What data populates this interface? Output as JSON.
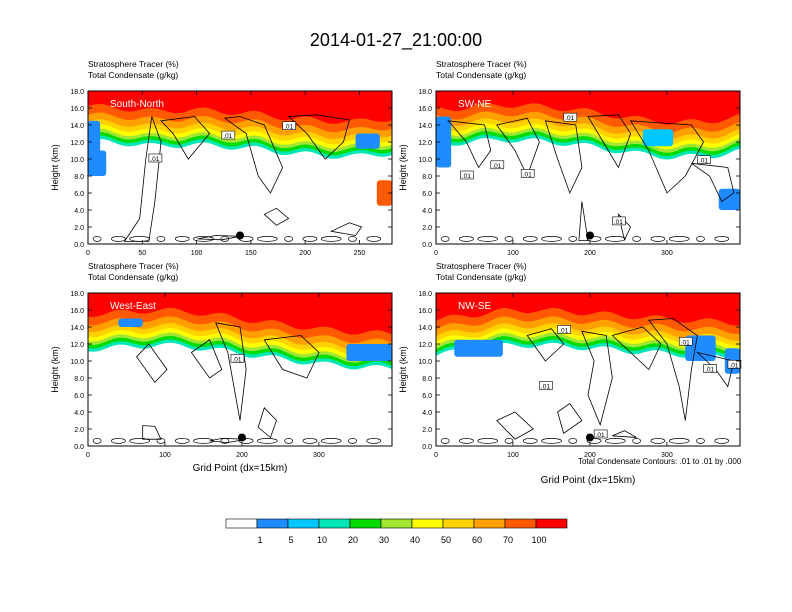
{
  "title": "2014-01-27_21:00:00",
  "colors": {
    "scale": [
      "#ffffff",
      "#1e8cff",
      "#00c8ff",
      "#00e6b4",
      "#00dc00",
      "#a0e632",
      "#ffff00",
      "#ffd200",
      "#ffa000",
      "#ff5a00",
      "#ff0000"
    ],
    "contour": "#000000"
  },
  "panels": [
    {
      "id": "south-north",
      "label": "South-North",
      "tracer_label": "Stratosphere Tracer   (%)",
      "condensate_label": "Total Condensate   (g/kg)",
      "xmax": 280,
      "xticks": [
        0,
        50,
        100,
        150,
        200,
        250
      ],
      "marker_x": 140,
      "contour_labels": [
        ".01",
        ".01",
        ".01"
      ]
    },
    {
      "id": "sw-ne",
      "label": "SW-NE",
      "tracer_label": "Stratosphere Tracer   (%)",
      "condensate_label": "Total Condensate   (g/kg)",
      "xmax": 395,
      "xticks": [
        0,
        100,
        200,
        300
      ],
      "marker_x": 200,
      "contour_labels": [
        ".01",
        ".01",
        ".01",
        ".01",
        ".01",
        ".01"
      ]
    },
    {
      "id": "west-east",
      "label": "West-East",
      "tracer_label": "Stratosphere Tracer   (%)",
      "condensate_label": "Total Condensate   (g/kg)",
      "xmax": 395,
      "xticks": [
        0,
        100,
        200,
        300
      ],
      "marker_x": 200,
      "contour_labels": [
        ".01"
      ]
    },
    {
      "id": "nw-se",
      "label": "NW-SE",
      "tracer_label": "Stratosphere Tracer   (%)",
      "condensate_label": "Total Condensate   (g/kg)",
      "xmax": 395,
      "xticks": [
        0,
        100,
        200,
        300
      ],
      "marker_x": 200,
      "contour_labels": [
        ".01",
        ".01",
        ".01",
        ".01",
        ".01",
        ".01"
      ]
    }
  ],
  "ylabel": "Height (km)",
  "yticks": [
    "0.0",
    "2.0",
    "4.0",
    "6.0",
    "8.0",
    "10.0",
    "12.0",
    "14.0",
    "16.0",
    "18.0"
  ],
  "xlabel": "Grid Point (dx=15km)",
  "contour_note": "Total Condensate Contours: .01 to .01 by .000",
  "colorbar_labels": [
    "1",
    "5",
    "10",
    "20",
    "30",
    "40",
    "50",
    "60",
    "70",
    "100"
  ],
  "chart_data": {
    "type": "heatmap",
    "title": "2014-01-27_21:00:00",
    "variables": [
      "Stratosphere Tracer (%)",
      "Total Condensate (g/kg)"
    ],
    "ylabel": "Height (km)",
    "ylim": [
      0,
      18
    ],
    "xlabel": "Grid Point (dx=15km)",
    "levels": [
      1,
      5,
      10,
      20,
      30,
      40,
      50,
      60,
      70,
      100
    ],
    "contour_levels": [
      0.01
    ],
    "cross_sections": [
      {
        "name": "South-North",
        "xlim": [
          0,
          280
        ],
        "tracer_top_km": [
          16.2,
          16.0,
          15.6,
          15.8,
          15.6,
          15.3,
          14.8,
          14.5,
          14.4,
          14.8
        ]
      },
      {
        "name": "SW-NE",
        "xlim": [
          0,
          395
        ],
        "tracer_top_km": [
          15.8,
          16.1,
          16.4,
          16.2,
          15.9,
          15.3,
          14.7,
          14.3,
          14.4,
          15.0
        ]
      },
      {
        "name": "West-East",
        "xlim": [
          0,
          395
        ],
        "tracer_top_km": [
          15.5,
          15.7,
          16.0,
          15.8,
          15.3,
          14.7,
          14.2,
          13.7,
          13.4,
          13.2
        ]
      },
      {
        "name": "NW-SE",
        "xlim": [
          0,
          395
        ],
        "tracer_top_km": [
          14.8,
          15.4,
          15.9,
          16.0,
          15.8,
          15.5,
          15.2,
          14.9,
          14.7,
          14.5
        ]
      }
    ]
  }
}
